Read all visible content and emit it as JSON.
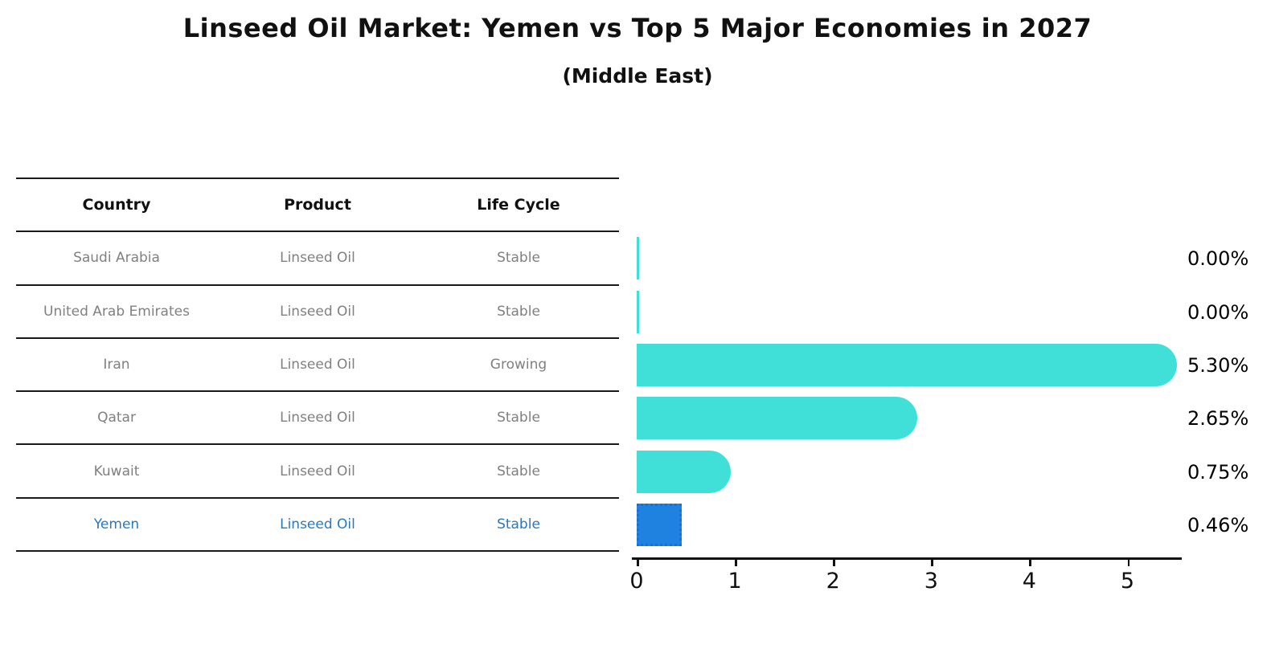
{
  "title": "Linseed Oil Market: Yemen vs Top 5 Major Economies in 2027",
  "subtitle": "(Middle East)",
  "table": {
    "headers": [
      "Country",
      "Product",
      "Life Cycle"
    ],
    "rows": [
      {
        "country": "Saudi Arabia",
        "product": "Linseed Oil",
        "life_cycle": "Stable",
        "highlight": false
      },
      {
        "country": "United Arab Emirates",
        "product": "Linseed Oil",
        "life_cycle": "Stable",
        "highlight": false
      },
      {
        "country": "Iran",
        "product": "Linseed Oil",
        "life_cycle": "Growing",
        "highlight": false
      },
      {
        "country": "Qatar",
        "product": "Linseed Oil",
        "life_cycle": "Stable",
        "highlight": false
      },
      {
        "country": "Kuwait",
        "product": "Linseed Oil",
        "life_cycle": "Stable",
        "highlight": false
      },
      {
        "country": "Yemen",
        "product": "Linseed Oil",
        "life_cycle": "Stable",
        "highlight": true
      }
    ]
  },
  "chart_data": {
    "type": "bar",
    "orientation": "horizontal",
    "title": "Linseed Oil Market: Yemen vs Top 5 Major Economies in 2027",
    "subtitle": "(Middle East)",
    "categories": [
      "Saudi Arabia",
      "United Arab Emirates",
      "Iran",
      "Qatar",
      "Kuwait",
      "Yemen"
    ],
    "values": [
      0.0,
      0.0,
      5.3,
      2.65,
      0.75,
      0.46
    ],
    "value_labels": [
      "0.00%",
      "0.00%",
      "5.30%",
      "2.65%",
      "0.75%",
      "0.46%"
    ],
    "xlim": [
      0,
      5.6
    ],
    "xticks": [
      0,
      1,
      2,
      3,
      4,
      5
    ],
    "grid": false,
    "legend": "none",
    "highlight_index": 5,
    "bar_color": "#40E0D8",
    "highlight_bar_color": "#2082E0",
    "highlight_bar_border": "#1a6fd6",
    "highlight_text_color": "#2878be",
    "axis_color": "#111111",
    "table_text_color": "#808080"
  }
}
